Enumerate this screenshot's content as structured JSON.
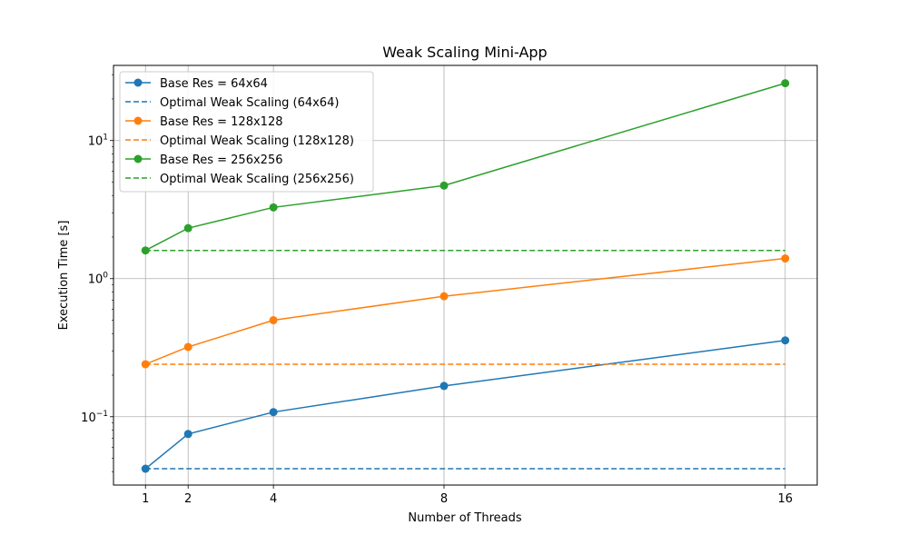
{
  "chart_data": {
    "type": "line",
    "title": "Weak Scaling Mini-App",
    "xlabel": "Number of Threads",
    "ylabel": "Execution Time [s]",
    "xscale": "linear",
    "yscale": "log",
    "x": [
      1,
      2,
      4,
      8,
      16
    ],
    "xticks": [
      "1",
      "2",
      "4",
      "8",
      "16"
    ],
    "xlim": [
      0.25,
      16.75
    ],
    "ylim": [
      0.032,
      35
    ],
    "yticks": [
      {
        "value": 0.1,
        "base": "10",
        "exp": "−1"
      },
      {
        "value": 1,
        "base": "10",
        "exp": "0"
      },
      {
        "value": 10,
        "base": "10",
        "exp": "1"
      }
    ],
    "grid": true,
    "legend_position": "upper-left",
    "series": [
      {
        "name": "Base Res = 64x64",
        "style": "solid",
        "marker": "circle",
        "color": "#1f77b4",
        "values": [
          0.042,
          0.075,
          0.108,
          0.167,
          0.357
        ]
      },
      {
        "name": "Optimal Weak Scaling (64x64)",
        "style": "dashed",
        "marker": "none",
        "color": "#1f77b4",
        "values": [
          0.042,
          0.042,
          0.042,
          0.042,
          0.042
        ]
      },
      {
        "name": "Base Res = 128x128",
        "style": "solid",
        "marker": "circle",
        "color": "#ff7f0e",
        "values": [
          0.24,
          0.32,
          0.5,
          0.745,
          1.4
        ]
      },
      {
        "name": "Optimal Weak Scaling (128x128)",
        "style": "dashed",
        "marker": "none",
        "color": "#ff7f0e",
        "values": [
          0.24,
          0.24,
          0.24,
          0.24,
          0.24
        ]
      },
      {
        "name": "Base Res = 256x256",
        "style": "solid",
        "marker": "circle",
        "color": "#2ca02c",
        "values": [
          1.6,
          2.32,
          3.28,
          4.72,
          26
        ]
      },
      {
        "name": "Optimal Weak Scaling (256x256)",
        "style": "dashed",
        "marker": "none",
        "color": "#2ca02c",
        "values": [
          1.6,
          1.6,
          1.6,
          1.6,
          1.6
        ]
      }
    ]
  }
}
